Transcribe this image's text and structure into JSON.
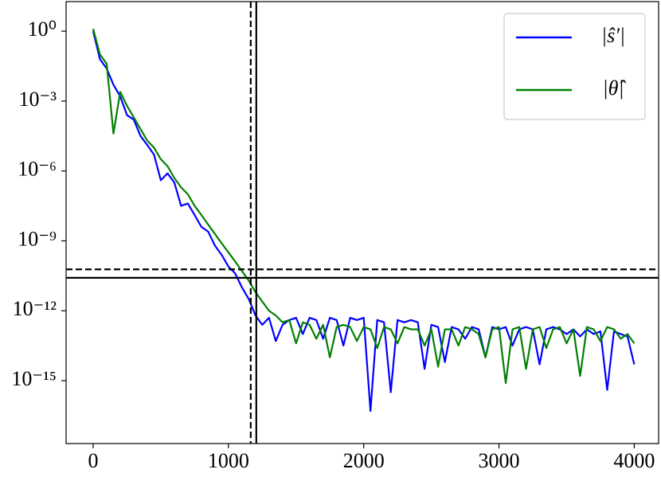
{
  "chart_data": {
    "type": "line",
    "x": [
      0,
      50,
      100,
      150,
      200,
      250,
      300,
      350,
      400,
      450,
      500,
      550,
      600,
      650,
      700,
      750,
      800,
      850,
      900,
      950,
      1000,
      1050,
      1100,
      1150,
      1200,
      1250,
      1300,
      1350,
      1400,
      1450,
      1500,
      1550,
      1600,
      1650,
      1700,
      1750,
      1800,
      1850,
      1900,
      1950,
      2000,
      2050,
      2100,
      2150,
      2200,
      2250,
      2300,
      2350,
      2400,
      2450,
      2500,
      2550,
      2600,
      2650,
      2700,
      2750,
      2800,
      2850,
      2900,
      2950,
      3000,
      3050,
      3100,
      3150,
      3200,
      3250,
      3300,
      3350,
      3400,
      3450,
      3500,
      3550,
      3600,
      3650,
      3700,
      3750,
      3800,
      3850,
      3900,
      3950,
      4000
    ],
    "series": [
      {
        "name": "|ŝ′|",
        "color": "#0000ff",
        "values": [
          1,
          0.063,
          0.025,
          0.005,
          0.0016,
          0.00025,
          0.00016,
          3.2e-05,
          1.3e-05,
          5e-06,
          4e-07,
          7.9e-07,
          3.2e-07,
          3.2e-08,
          4e-08,
          1.3e-08,
          4e-09,
          2.5e-09,
          6.3e-10,
          2.5e-10,
          7.9e-11,
          4e-11,
          1e-11,
          3.2e-12,
          6.3e-13,
          2.5e-13,
          5e-13,
          5e-14,
          2.5e-13,
          4e-13,
          5e-13,
          1e-13,
          5e-13,
          4e-13,
          6.3e-14,
          5e-13,
          4e-13,
          3.2e-14,
          5e-13,
          4e-13,
          5e-13,
          5e-17,
          4e-13,
          3.2e-13,
          3.2e-16,
          4e-13,
          3.2e-13,
          4e-13,
          3.2e-13,
          3.2e-15,
          2.5e-13,
          2e-13,
          6.3e-15,
          2e-13,
          1.6e-13,
          6.3e-14,
          2e-13,
          1.6e-13,
          1e-14,
          2e-13,
          1.6e-13,
          2e-13,
          3.2e-14,
          1.6e-13,
          2e-13,
          1.6e-13,
          5e-15,
          1.6e-13,
          2e-13,
          1.6e-13,
          1e-13,
          1.6e-13,
          7.9e-14,
          1.6e-13,
          1e-13,
          1.3e-13,
          4e-16,
          1.3e-13,
          1e-13,
          7.9e-14,
          5e-15
        ]
      },
      {
        "name": "|θ̂|",
        "color": "#008000",
        "values": [
          1.26,
          0.1,
          0.04,
          4e-05,
          0.0025,
          0.00063,
          0.0002,
          6.3e-05,
          2e-05,
          1e-05,
          3.2e-06,
          1.6e-06,
          5e-07,
          2e-07,
          1e-07,
          3.2e-08,
          1.3e-08,
          5e-09,
          2e-09,
          7.9e-10,
          3.2e-10,
          1.3e-10,
          5e-11,
          2e-11,
          6.3e-12,
          2.5e-12,
          1e-12,
          6.3e-13,
          3.2e-13,
          4e-13,
          4e-14,
          3.2e-13,
          2.5e-13,
          6.3e-14,
          2.5e-13,
          1e-14,
          2e-13,
          2.5e-13,
          2e-13,
          5e-14,
          2e-13,
          1.6e-13,
          2.5e-14,
          2e-13,
          1.6e-13,
          4e-14,
          2e-13,
          1.6e-13,
          1.6e-13,
          3.2e-14,
          1.6e-13,
          4e-15,
          1.6e-13,
          1.6e-13,
          3.2e-14,
          2e-13,
          1.6e-13,
          1e-13,
          1e-14,
          1.6e-13,
          2e-13,
          7.9e-16,
          1.6e-13,
          2e-13,
          3.2e-15,
          1.6e-13,
          2e-13,
          2.5e-14,
          1.6e-13,
          2e-13,
          4e-14,
          1.6e-13,
          1.6e-15,
          2e-13,
          1.6e-13,
          5e-14,
          2e-13,
          1.6e-13,
          6.3e-14,
          1e-13,
          4e-14
        ]
      }
    ],
    "xlim": [
      -200,
      4180
    ],
    "xticks": [
      0,
      1000,
      2000,
      3000,
      4000
    ],
    "ylim": [
      2e-18,
      18.6
    ],
    "yscale": "log",
    "yticks": [
      {
        "value": 1,
        "label": "10⁰"
      },
      {
        "value": 0.001,
        "label": "10⁻³"
      },
      {
        "value": 1e-06,
        "label": "10⁻⁶"
      },
      {
        "value": 1e-09,
        "label": "10⁻⁹"
      },
      {
        "value": 1e-12,
        "label": "10⁻¹²"
      },
      {
        "value": 1e-15,
        "label": "10⁻¹⁵"
      }
    ],
    "vlines": [
      {
        "value": 1165,
        "style": "dashed"
      },
      {
        "value": 1206,
        "style": "solid"
      }
    ],
    "hlines": [
      {
        "value": 6e-11,
        "style": "dashed"
      },
      {
        "value": 2.6e-11,
        "style": "solid"
      }
    ],
    "legend": "upper right"
  }
}
